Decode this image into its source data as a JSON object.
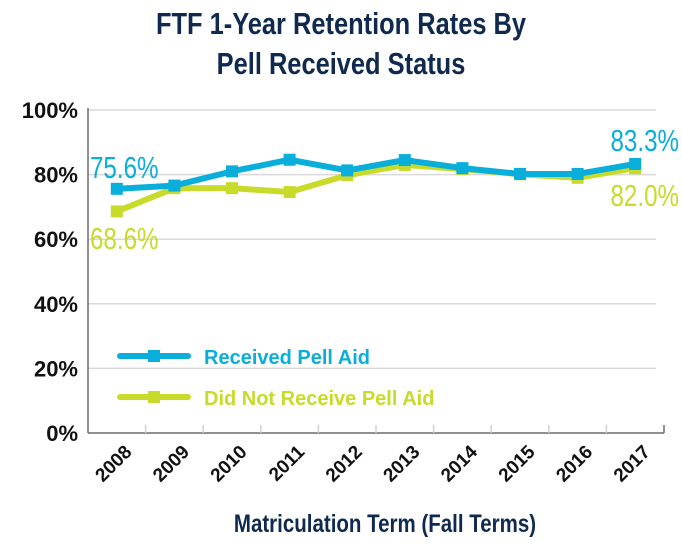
{
  "chart_data": {
    "type": "line",
    "title": "FTF 1-Year Retention Rates By Pell Received Status",
    "title_lines": [
      "FTF 1-Year Retention Rates By",
      "Pell Received Status"
    ],
    "xlabel": "Matriculation Term (Fall Terms)",
    "ylabel": "",
    "categories": [
      "2008",
      "2009",
      "2010",
      "2011",
      "2012",
      "2013",
      "2014",
      "2015",
      "2016",
      "2017"
    ],
    "yticks": [
      "0%",
      "20%",
      "40%",
      "60%",
      "80%",
      "100%"
    ],
    "ylim": [
      0,
      100
    ],
    "grid": true,
    "legend_position": "bottom-left inside plot",
    "series": [
      {
        "name": "Received Pell Aid",
        "color": "#0aaedb",
        "values": [
          75.6,
          76.6,
          81.0,
          84.6,
          81.3,
          84.5,
          82.0,
          80.2,
          80.2,
          83.3
        ],
        "annotations": [
          {
            "index": 0,
            "text": "75.6%"
          },
          {
            "index": 9,
            "text": "83.3%"
          }
        ]
      },
      {
        "name": "Did Not Receive Pell Aid",
        "color": "#c8db2a",
        "values": [
          68.6,
          75.8,
          75.8,
          74.6,
          79.8,
          83.0,
          81.7,
          80.1,
          79.0,
          82.0
        ],
        "annotations": [
          {
            "index": 0,
            "text": "68.6%"
          },
          {
            "index": 9,
            "text": "82.0%"
          }
        ]
      }
    ]
  }
}
